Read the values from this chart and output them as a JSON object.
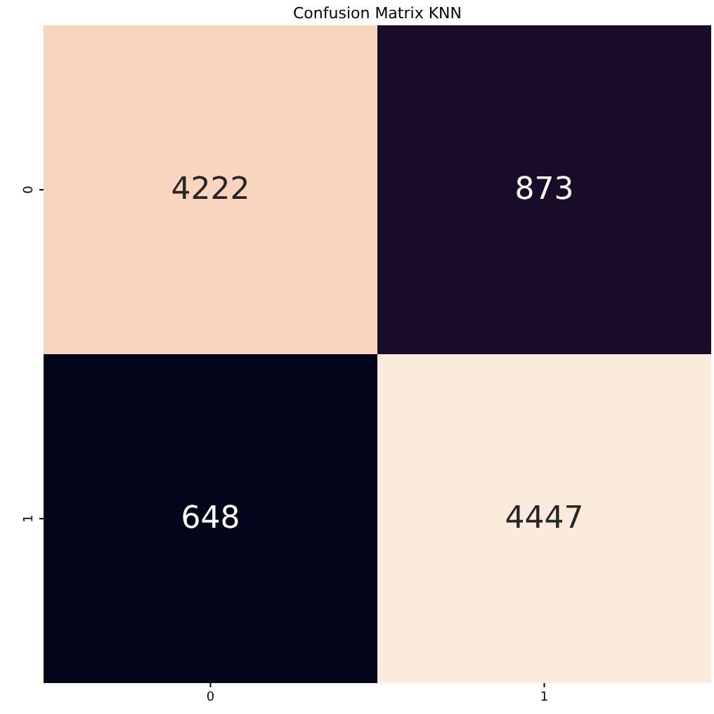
{
  "chart_data": {
    "type": "heatmap",
    "title": "Confusion Matrix KNN",
    "categories": [
      "0",
      "1"
    ],
    "y_categories": [
      "0",
      "1"
    ],
    "cells": [
      [
        4222,
        873
      ],
      [
        648,
        4447
      ]
    ],
    "data_labels": true
  }
}
